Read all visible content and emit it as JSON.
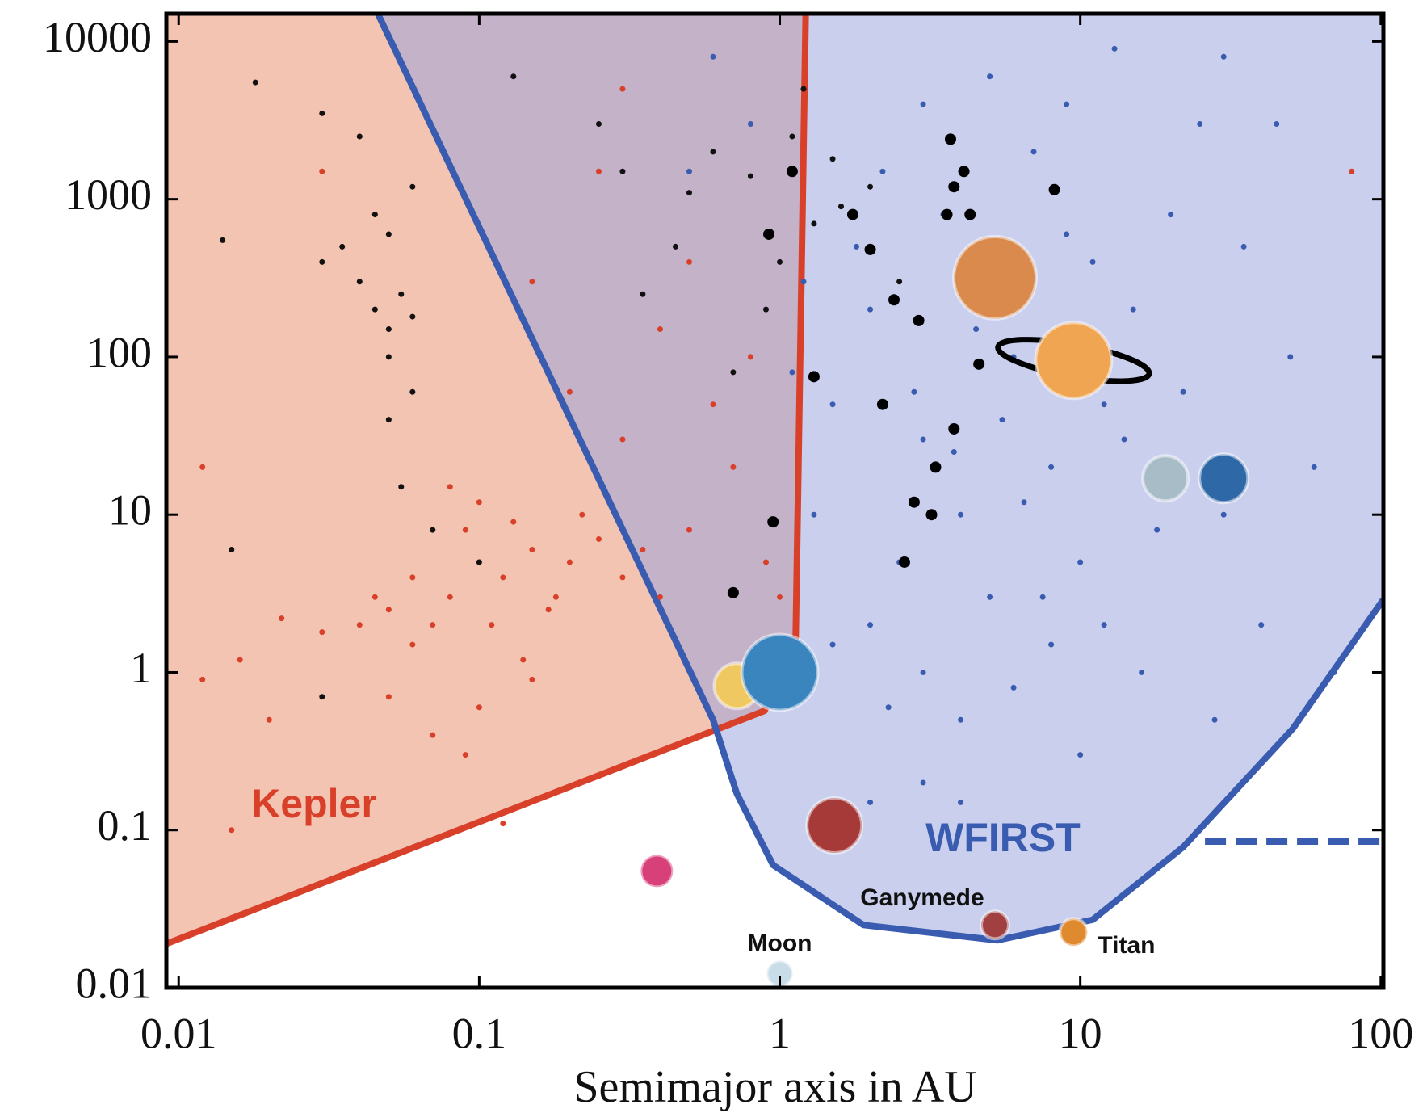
{
  "chart_data": {
    "type": "scatter",
    "xlabel": "Semimajor axis in AU",
    "xscale": "log",
    "yscale": "log",
    "xlim": [
      0.0091,
      102
    ],
    "ylim": [
      0.01,
      15000
    ],
    "xticks": [
      0.01,
      0.1,
      1,
      10,
      100
    ],
    "yticks": [
      0.01,
      0.1,
      1,
      10,
      100,
      1000,
      10000
    ],
    "regions": [
      {
        "label": "Kepler",
        "color": "#d9402a",
        "fill": "#f3c4b2",
        "x": [
          0.0091,
          0.89,
          1.13,
          1.22
        ],
        "y": [
          0.019,
          0.57,
          1.66,
          15000
        ]
      },
      {
        "label": "WFIRST",
        "color": "#3a5cb0",
        "fill": "rgba(150,160,222,0.5)",
        "x": [
          0.046,
          0.6,
          0.72,
          0.95,
          1.9,
          5.3,
          11,
          22,
          51,
          102
        ],
        "y": [
          15000,
          0.5,
          0.17,
          0.06,
          0.025,
          0.02,
          0.027,
          0.078,
          0.44,
          2.9
        ]
      }
    ],
    "limit_line": {
      "color": "#3a5cb0",
      "x": [
        26,
        102
      ],
      "y": [
        0.085,
        0.085
      ]
    },
    "series": [
      {
        "color": "#d9402a",
        "size": 3.5,
        "x": [
          0.08,
          0.1,
          0.12,
          0.07,
          0.15,
          0.2,
          0.09,
          0.05,
          0.06,
          0.11,
          0.13,
          0.18,
          0.25,
          0.3,
          0.04,
          0.03,
          0.022,
          0.016,
          0.35,
          0.14,
          0.1,
          0.08,
          0.06,
          0.045,
          0.17,
          0.22,
          0.4,
          0.5,
          0.7,
          0.6,
          0.3,
          0.4,
          0.2,
          0.15,
          0.5,
          0.8,
          0.25,
          0.3,
          0.04,
          0.03,
          0.012,
          0.02,
          0.05,
          0.07,
          0.1,
          0.15,
          0.09,
          0.012,
          0.015,
          0.12,
          0.9,
          1.0,
          0.7,
          80
        ],
        "values": [
          3,
          5,
          4,
          2,
          6,
          5,
          8,
          2.5,
          1.5,
          2,
          9,
          3,
          7,
          4,
          2,
          1.8,
          2.2,
          1.2,
          6,
          1.2,
          12,
          15,
          4,
          3,
          2.5,
          10,
          3,
          8,
          20,
          50,
          30,
          150,
          60,
          300,
          400,
          100,
          1500,
          5000,
          2500,
          1500,
          0.9,
          0.5,
          0.7,
          0.4,
          0.6,
          0.9,
          0.3,
          20,
          0.1,
          0.11,
          5,
          3,
          0.8,
          1500
        ]
      },
      {
        "color": "#111111",
        "size": 3.5,
        "x": [
          0.045,
          0.05,
          0.04,
          0.055,
          0.035,
          0.03,
          0.06,
          0.05,
          0.045,
          0.06,
          0.04,
          0.03,
          0.018,
          0.014,
          0.05,
          0.06,
          0.05,
          0.055,
          0.07,
          0.1,
          0.03,
          0.015,
          0.3,
          0.5,
          0.6,
          0.8,
          1.1,
          1.5,
          2,
          1.3,
          1,
          0.9,
          0.7,
          1.6,
          2.5,
          0.45,
          0.35,
          0.25,
          1.2,
          0.13
        ],
        "values": [
          200,
          150,
          300,
          250,
          500,
          400,
          180,
          600,
          800,
          1200,
          2500,
          3500,
          5500,
          550,
          100,
          60,
          40,
          15,
          8,
          5,
          0.7,
          6,
          1500,
          1100,
          2000,
          1400,
          2500,
          1800,
          1200,
          700,
          400,
          200,
          80,
          900,
          300,
          500,
          250,
          3000,
          5000,
          6000
        ]
      },
      {
        "color": "#3a5cb0",
        "size": 3.5,
        "x": [
          1.5,
          2,
          3,
          4,
          5,
          2.5,
          3.5,
          6,
          8,
          10,
          12,
          15,
          20,
          25,
          30,
          40,
          50,
          2,
          1.5,
          3,
          4,
          6,
          8,
          10,
          12,
          1.3,
          1.8,
          2.2,
          3,
          5,
          7,
          9,
          11,
          14,
          18,
          22,
          35,
          45,
          60,
          70,
          1.2,
          2.8,
          3.8,
          4.5,
          5.5,
          6.5,
          7.5,
          2.3,
          16,
          28,
          0.8,
          0.6,
          0.5,
          1.1,
          4,
          3,
          2,
          9,
          13,
          30
        ],
        "values": [
          50,
          200,
          30,
          10,
          3,
          5,
          800,
          100,
          20,
          5,
          50,
          200,
          800,
          3000,
          10,
          2,
          100,
          2,
          1.5,
          1,
          0.5,
          0.8,
          1.5,
          0.3,
          2,
          10,
          500,
          1500,
          4000,
          6000,
          2000,
          600,
          400,
          30,
          8,
          60,
          500,
          3000,
          20,
          1,
          300,
          60,
          25,
          150,
          40,
          12,
          3,
          0.6,
          1,
          0.5,
          3000,
          8000,
          1500,
          80,
          0.15,
          0.2,
          0.15,
          4000,
          9000,
          8000
        ]
      },
      {
        "color": "#000000",
        "size": 7,
        "x": [
          2.2,
          2.8,
          3.2,
          2.6,
          0.95,
          0.7,
          3.8,
          3.3,
          1.3,
          2.9,
          2.4,
          2,
          1.75,
          3.6,
          4.3,
          3.8,
          4.1,
          3.7,
          8.2,
          0.92,
          1.1,
          4.6
        ],
        "values": [
          50,
          12,
          10,
          5,
          9,
          3.2,
          35,
          20,
          75,
          170,
          230,
          480,
          800,
          800,
          800,
          1200,
          1500,
          2400,
          1150,
          600,
          1500,
          90
        ]
      }
    ],
    "bodies": {
      "x": [
        5.2,
        9.5,
        19.2,
        30,
        0.72,
        1,
        1.52,
        0.39,
        5.2,
        9.5,
        1
      ],
      "values": [
        318,
        95,
        17,
        17,
        0.82,
        1,
        0.107,
        0.055,
        0.025,
        0.0225,
        0.0123
      ],
      "colors": [
        "#d98a4c",
        "#f0a552",
        "#a8bcc8",
        "#2f68a6",
        "#f0c862",
        "#3b85bf",
        "#a53a38",
        "#d8407a",
        "#a04040",
        "#e08a30",
        "#c9dde8"
      ],
      "labels": [
        null,
        null,
        null,
        null,
        null,
        null,
        null,
        null,
        "Ganymede",
        "Titan",
        "Moon"
      ]
    }
  }
}
